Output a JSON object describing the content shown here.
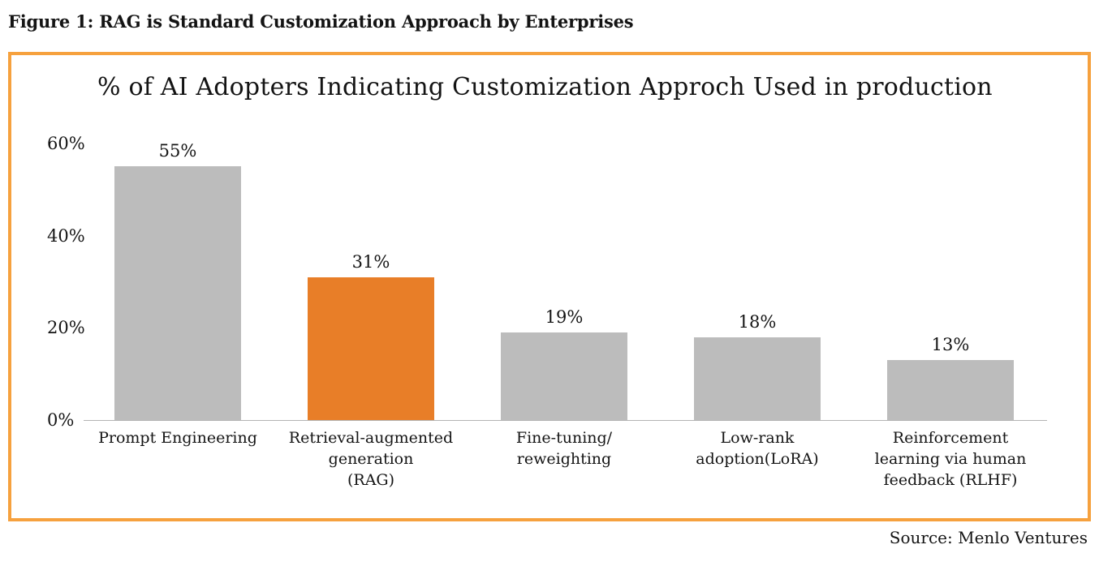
{
  "figure_title": "Figure 1: RAG is Standard Customization Approach by Enterprises",
  "source": "Source: Menlo Ventures",
  "colors": {
    "frame_border": "#f6a13e",
    "bar_default": "#bcbcbc",
    "bar_highlight": "#e87e28",
    "axis_line": "#b3b3b3",
    "text": "#141414"
  },
  "chart_data": {
    "type": "bar",
    "title": "% of AI Adopters Indicating Customization Approch Used in production",
    "categories": [
      "Prompt Engineering",
      "Retrieval-augmented\ngeneration\n(RAG)",
      "Fine-tuning/\nreweighting",
      "Low-rank\nadoption(LoRA)",
      "Reinforcement\nlearning via human\nfeedback (RLHF)"
    ],
    "values": [
      55,
      31,
      19,
      18,
      13
    ],
    "value_labels": [
      "55%",
      "31%",
      "19%",
      "18%",
      "13%"
    ],
    "highlight_index": 1,
    "xlabel": "",
    "ylabel": "",
    "ylim": [
      0,
      60
    ],
    "y_ticks": [
      {
        "value": 0,
        "label": "0%"
      },
      {
        "value": 20,
        "label": "20%"
      },
      {
        "value": 40,
        "label": "40%"
      },
      {
        "value": 60,
        "label": "60%"
      }
    ],
    "grid": false,
    "legend": false
  }
}
